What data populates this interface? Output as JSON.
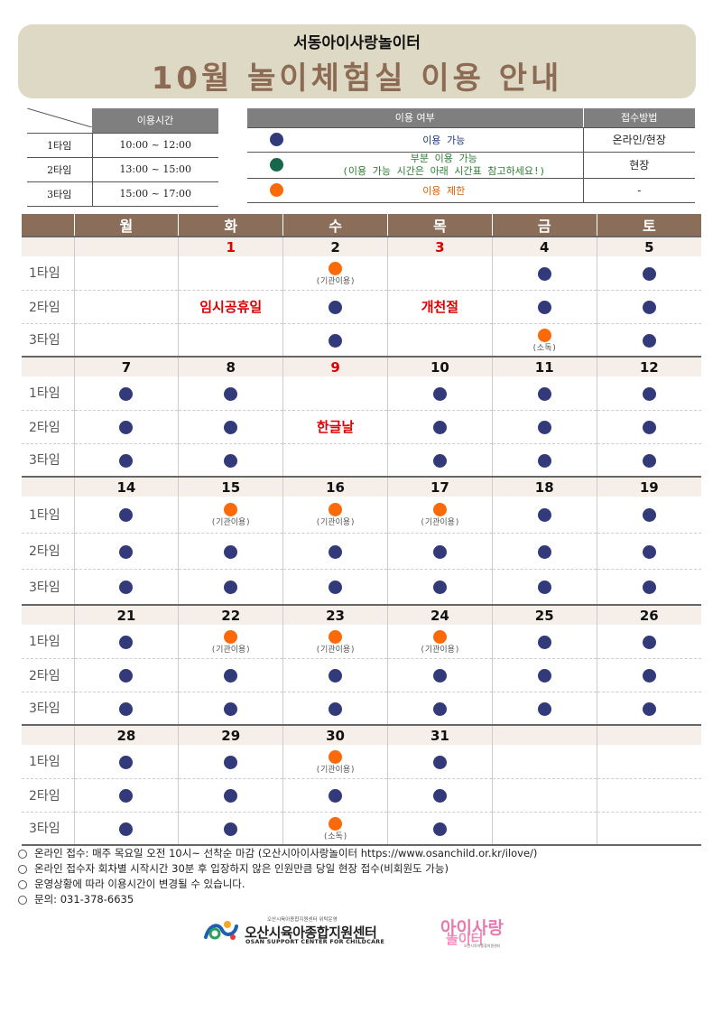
{
  "header": {
    "subtitle": "서동아이사랑놀이터",
    "title": "10월 놀이체험실 이용 안내"
  },
  "time_table": {
    "header": "이용시간",
    "rows": [
      {
        "label": "1타임",
        "time": "10:00 ~ 12:00"
      },
      {
        "label": "2타임",
        "time": "13:00 ~ 15:00"
      },
      {
        "label": "3타임",
        "time": "15:00 ~ 17:00"
      }
    ]
  },
  "usage_table": {
    "header_usage": "이용 여부",
    "header_method": "접수방법",
    "rows": [
      {
        "status": "available",
        "text": "이용 가능",
        "text2": "",
        "method": "온라인/현장"
      },
      {
        "status": "partial",
        "text": "부분 이용 가능",
        "text2": "(이용 가능 시간은 아래 시간표 참고하세요!)",
        "method": "현장"
      },
      {
        "status": "limited",
        "text": "이용 제한",
        "text2": "",
        "method": "-"
      }
    ]
  },
  "calendar": {
    "weekdays": [
      "월",
      "화",
      "수",
      "목",
      "금",
      "토"
    ],
    "slot_labels": [
      "1타임",
      "2타임",
      "3타임"
    ],
    "weeks": [
      {
        "dates": [
          "",
          "1",
          "2",
          "3",
          "4",
          "5"
        ],
        "red": [
          false,
          true,
          false,
          true,
          false,
          false
        ],
        "holidays": [
          null,
          "임시공휴일",
          null,
          "개천절",
          null,
          null
        ],
        "slots": [
          [
            null,
            null,
            {
              "s": "o",
              "n": "(기관이용)"
            },
            null,
            {
              "s": "n"
            },
            {
              "s": "n"
            }
          ],
          [
            null,
            null,
            {
              "s": "n"
            },
            null,
            {
              "s": "n"
            },
            {
              "s": "n"
            }
          ],
          [
            null,
            null,
            {
              "s": "n"
            },
            null,
            {
              "s": "o",
              "n": "(소독)"
            },
            {
              "s": "n"
            }
          ]
        ]
      },
      {
        "dates": [
          "7",
          "8",
          "9",
          "10",
          "11",
          "12"
        ],
        "red": [
          false,
          false,
          true,
          false,
          false,
          false
        ],
        "holidays": [
          null,
          null,
          "한글날",
          null,
          null,
          null
        ],
        "slots": [
          [
            {
              "s": "n"
            },
            {
              "s": "n"
            },
            null,
            {
              "s": "n"
            },
            {
              "s": "n"
            },
            {
              "s": "n"
            }
          ],
          [
            {
              "s": "n"
            },
            {
              "s": "n"
            },
            null,
            {
              "s": "n"
            },
            {
              "s": "n"
            },
            {
              "s": "n"
            }
          ],
          [
            {
              "s": "n"
            },
            {
              "s": "n"
            },
            null,
            {
              "s": "n"
            },
            {
              "s": "n"
            },
            {
              "s": "n"
            }
          ]
        ]
      },
      {
        "dates": [
          "14",
          "15",
          "16",
          "17",
          "18",
          "19"
        ],
        "red": [
          false,
          false,
          false,
          false,
          false,
          false
        ],
        "holidays": [
          null,
          null,
          null,
          null,
          null,
          null
        ],
        "slots": [
          [
            {
              "s": "n"
            },
            {
              "s": "o",
              "n": "(기관이용)"
            },
            {
              "s": "o",
              "n": "(기관이용)"
            },
            {
              "s": "o",
              "n": "(기관이용)"
            },
            {
              "s": "n"
            },
            {
              "s": "n"
            }
          ],
          [
            {
              "s": "n"
            },
            {
              "s": "n"
            },
            {
              "s": "n"
            },
            {
              "s": "n"
            },
            {
              "s": "n"
            },
            {
              "s": "n"
            }
          ],
          [
            {
              "s": "n"
            },
            {
              "s": "n"
            },
            {
              "s": "n"
            },
            {
              "s": "n"
            },
            {
              "s": "n"
            },
            {
              "s": "n"
            }
          ]
        ]
      },
      {
        "dates": [
          "21",
          "22",
          "23",
          "24",
          "25",
          "26"
        ],
        "red": [
          false,
          false,
          false,
          false,
          false,
          false
        ],
        "holidays": [
          null,
          null,
          null,
          null,
          null,
          null
        ],
        "slots": [
          [
            {
              "s": "n"
            },
            {
              "s": "o",
              "n": "(기관이용)"
            },
            {
              "s": "o",
              "n": "(기관이용)"
            },
            {
              "s": "o",
              "n": "(기관이용)"
            },
            {
              "s": "n"
            },
            {
              "s": "n"
            }
          ],
          [
            {
              "s": "n"
            },
            {
              "s": "n"
            },
            {
              "s": "n"
            },
            {
              "s": "n"
            },
            {
              "s": "n"
            },
            {
              "s": "n"
            }
          ],
          [
            {
              "s": "n"
            },
            {
              "s": "n"
            },
            {
              "s": "n"
            },
            {
              "s": "n"
            },
            {
              "s": "n"
            },
            {
              "s": "n"
            }
          ]
        ]
      },
      {
        "dates": [
          "28",
          "29",
          "30",
          "31",
          "",
          ""
        ],
        "red": [
          false,
          false,
          false,
          false,
          false,
          false
        ],
        "holidays": [
          null,
          null,
          null,
          null,
          null,
          null
        ],
        "slots": [
          [
            {
              "s": "n"
            },
            {
              "s": "n"
            },
            {
              "s": "o",
              "n": "(기관이용)"
            },
            {
              "s": "n"
            },
            null,
            null
          ],
          [
            {
              "s": "n"
            },
            {
              "s": "n"
            },
            {
              "s": "n"
            },
            {
              "s": "n"
            },
            null,
            null
          ],
          [
            {
              "s": "n"
            },
            {
              "s": "n"
            },
            {
              "s": "o",
              "n": "(소독)"
            },
            {
              "s": "n"
            },
            null,
            null
          ]
        ]
      }
    ]
  },
  "notes": [
    "온라인 접수: 매주 목요일 오전 10시~ 선착순 마감 (오산시아이사랑놀이터 https://www.osanchild.or.kr/ilove/)",
    "온라인 접수자 회차별 시작시간 30분 후 입장하지 않은 인원만큼 당일 현장 접수(비회원도 가능)",
    "운영상황에 따라 이용시간이 변경될 수 있습니다.",
    "문의: 031-378-6635"
  ],
  "logos": {
    "center_small": "오산시육아종합지원센터 위탁운영",
    "center_name": "오산시육아종합지원센터",
    "center_en": "OSAN SUPPORT CENTER FOR CHILDCARE",
    "brand_line1": "아이사랑",
    "brand_line2": "놀이터",
    "brand_small": "오산시육아종합지원센터"
  },
  "colors": {
    "available": "#323a7a",
    "partial": "#17674a",
    "limited": "#fb6a0a",
    "header_brown": "#8b6e59",
    "banner": "#ddd9c4",
    "holiday_red": "#dd0000"
  }
}
